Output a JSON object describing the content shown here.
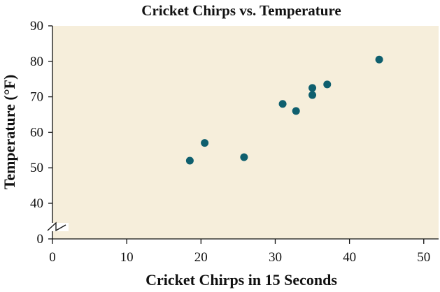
{
  "chart_data": {
    "type": "scatter",
    "title": "Cricket Chirps vs. Temperature",
    "xlabel": "Cricket Chirps in 15 Seconds",
    "ylabel": "Temperature (°F)",
    "xlim": [
      0,
      52
    ],
    "ylim": [
      0,
      90
    ],
    "y_axis_break": {
      "from": 0,
      "to": 30
    },
    "x_ticks": [
      "0",
      "10",
      "20",
      "30",
      "40",
      "50"
    ],
    "y_ticks": [
      "0",
      "40",
      "50",
      "60",
      "70",
      "80",
      "90"
    ],
    "points": [
      {
        "x": 18.5,
        "y": 52
      },
      {
        "x": 20.5,
        "y": 57
      },
      {
        "x": 25.8,
        "y": 53
      },
      {
        "x": 31.0,
        "y": 68
      },
      {
        "x": 32.8,
        "y": 66
      },
      {
        "x": 35.0,
        "y": 72.5
      },
      {
        "x": 35.0,
        "y": 70.5
      },
      {
        "x": 37.0,
        "y": 73.5
      },
      {
        "x": 44.0,
        "y": 80.5
      }
    ],
    "colors": {
      "plot_background": "#f6eedb",
      "point": "#0f5f6e",
      "axis": "#111111"
    }
  }
}
